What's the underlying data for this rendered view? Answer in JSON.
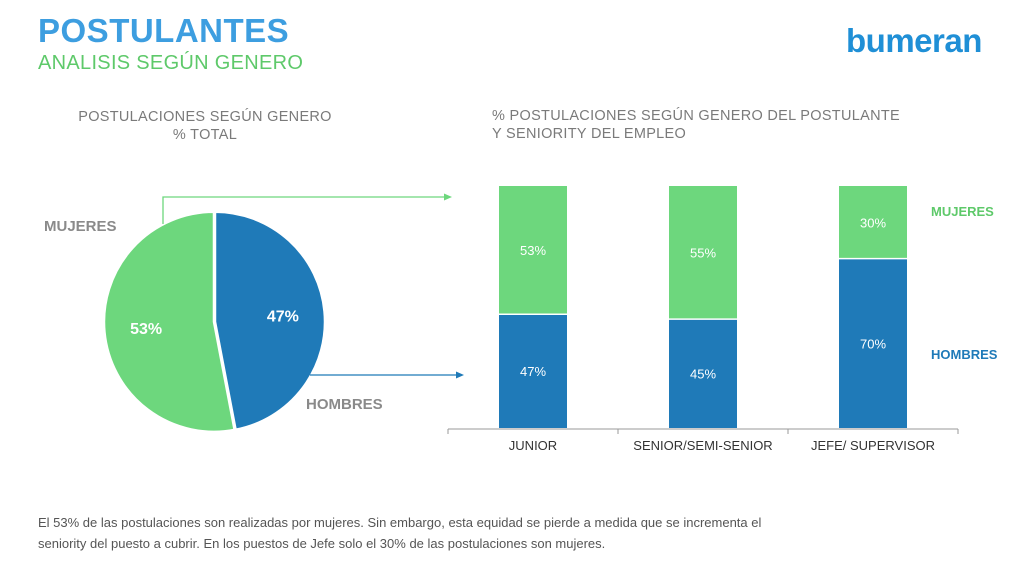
{
  "header": {
    "title": "POSTULANTES",
    "subtitle": "ANALISIS SEGÚN GENERO",
    "logo": "bumeran"
  },
  "colors": {
    "green": "#6dd77d",
    "blue": "#1f7ab8",
    "gray_text": "#7a7a7a"
  },
  "note": {
    "line1": "El 53% de las postulaciones son realizadas por mujeres. Sin embargo, esta equidad se pierde a medida que se incrementa el",
    "line2": "seniority del puesto a cubrir. En los puestos de Jefe solo el 30% de las postulaciones son mujeres."
  },
  "chart_data": [
    {
      "type": "pie",
      "title_line1": "POSTULACIONES SEGÚN GENERO",
      "title_line2": "% TOTAL",
      "slices": [
        {
          "name": "MUJERES",
          "value": 53,
          "label": "53%",
          "color": "#6dd77d"
        },
        {
          "name": "HOMBRES",
          "value": 47,
          "label": "47%",
          "color": "#1f7ab8"
        }
      ]
    },
    {
      "type": "bar",
      "stacked": true,
      "title_line1": "% POSTULACIONES SEGÚN GENERO DEL POSTULANTE",
      "title_line2": "Y SENIORITY DEL EMPLEO",
      "categories": [
        "JUNIOR",
        "SENIOR/SEMI-SENIOR",
        "JEFE/ SUPERVISOR"
      ],
      "ylim": [
        0,
        100
      ],
      "legend": "right",
      "series": [
        {
          "name": "HOMBRES",
          "values": [
            47,
            45,
            70
          ],
          "labels": [
            "47%",
            "45%",
            "70%"
          ],
          "color": "#1f7ab8"
        },
        {
          "name": "MUJERES",
          "values": [
            53,
            55,
            30
          ],
          "labels": [
            "53%",
            "55%",
            "30%"
          ],
          "color": "#6dd77d"
        }
      ]
    }
  ]
}
